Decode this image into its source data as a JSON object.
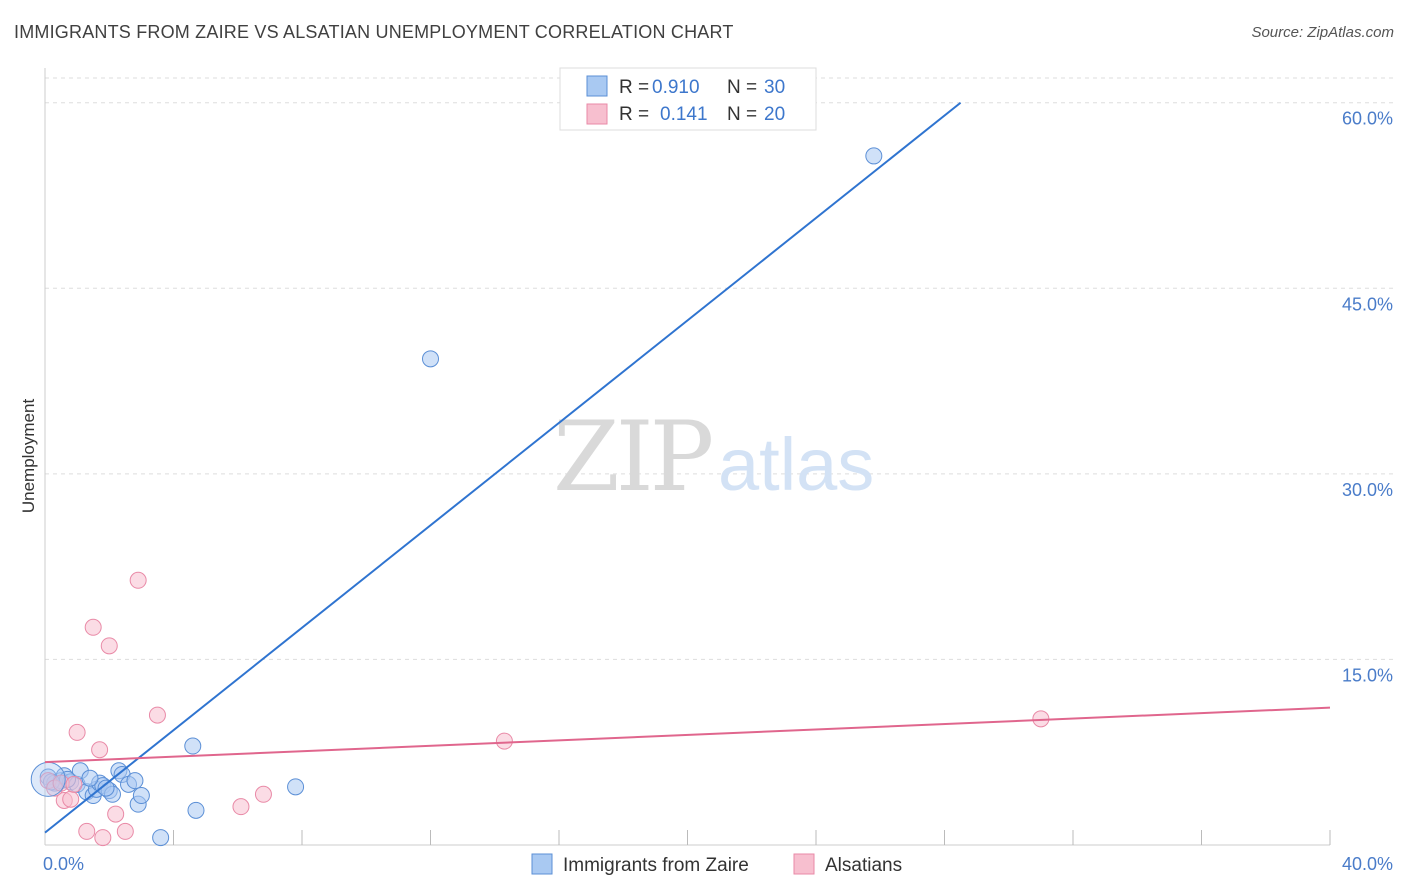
{
  "header": {
    "title": "IMMIGRANTS FROM ZAIRE VS ALSATIAN UNEMPLOYMENT CORRELATION CHART",
    "source": "Source: ZipAtlas.com"
  },
  "watermark": {
    "zip": "ZIP",
    "atlas": "atlas"
  },
  "colors": {
    "blue_fill": "#a9c9f2",
    "blue_stroke": "#5b8fd6",
    "blue_line": "#2f74d0",
    "pink_fill": "#f7bfcf",
    "pink_stroke": "#e98aa7",
    "pink_line": "#e0668d",
    "grid": "#dddddd",
    "axis_text": "#4a7cc9"
  },
  "legend": {
    "rows": [
      {
        "r_label": "R = ",
        "r_value": "0.910",
        "n_label": "N = ",
        "n_value": "30"
      },
      {
        "r_label": "R = ",
        "r_value": "0.141",
        "n_label": "N = ",
        "n_value": "20"
      }
    ]
  },
  "bottom_legend": [
    "Immigrants from Zaire",
    "Alsatians"
  ],
  "chart_data": {
    "type": "scatter",
    "title": "IMMIGRANTS FROM ZAIRE VS ALSATIAN UNEMPLOYMENT CORRELATION CHART",
    "xlabel": "",
    "ylabel": "Unemployment",
    "xlim": [
      0,
      40
    ],
    "ylim": [
      0,
      62
    ],
    "x_tick_labels": [
      "0.0%",
      "40.0%"
    ],
    "y_ticks": [
      15,
      30,
      45,
      60
    ],
    "y_tick_labels": [
      "15.0%",
      "30.0%",
      "45.0%",
      "60.0%"
    ],
    "grid": true,
    "series": [
      {
        "name": "Immigrants from Zaire",
        "R": 0.91,
        "N": 30,
        "points": [
          [
            0.1,
            5.5
          ],
          [
            0.3,
            5.0
          ],
          [
            0.5,
            5.2
          ],
          [
            0.6,
            5.6
          ],
          [
            0.8,
            5.1
          ],
          [
            1.0,
            4.9
          ],
          [
            1.1,
            6.0
          ],
          [
            1.3,
            4.3
          ],
          [
            1.5,
            4.0
          ],
          [
            1.6,
            4.5
          ],
          [
            1.7,
            5.0
          ],
          [
            1.8,
            4.8
          ],
          [
            2.0,
            4.4
          ],
          [
            2.1,
            4.1
          ],
          [
            2.3,
            6.0
          ],
          [
            2.4,
            5.7
          ],
          [
            2.6,
            4.9
          ],
          [
            2.8,
            5.2
          ],
          [
            2.9,
            3.3
          ],
          [
            3.0,
            4.0
          ],
          [
            3.6,
            0.6
          ],
          [
            4.6,
            8.0
          ],
          [
            4.7,
            2.8
          ],
          [
            7.8,
            4.7
          ],
          [
            12.0,
            39.3
          ],
          [
            25.8,
            55.7
          ],
          [
            0.2,
            5.1
          ],
          [
            0.7,
            5.3
          ],
          [
            1.9,
            4.6
          ],
          [
            1.4,
            5.4
          ]
        ],
        "trend": {
          "x": [
            0,
            28.5
          ],
          "y": [
            1.0,
            60.0
          ]
        }
      },
      {
        "name": "Alsatians",
        "R": 0.141,
        "N": 20,
        "points": [
          [
            0.1,
            5.2
          ],
          [
            0.3,
            4.6
          ],
          [
            0.5,
            5.0
          ],
          [
            0.6,
            3.6
          ],
          [
            0.8,
            3.7
          ],
          [
            0.9,
            4.9
          ],
          [
            1.0,
            9.1
          ],
          [
            1.3,
            1.1
          ],
          [
            1.5,
            17.6
          ],
          [
            1.7,
            7.7
          ],
          [
            1.8,
            0.6
          ],
          [
            2.0,
            16.1
          ],
          [
            2.2,
            2.5
          ],
          [
            2.5,
            1.1
          ],
          [
            2.9,
            21.4
          ],
          [
            3.5,
            10.5
          ],
          [
            6.1,
            3.1
          ],
          [
            6.8,
            4.1
          ],
          [
            14.3,
            8.4
          ],
          [
            31.0,
            10.2
          ]
        ],
        "trend": {
          "x": [
            0,
            40
          ],
          "y": [
            6.7,
            11.1
          ]
        }
      }
    ]
  }
}
